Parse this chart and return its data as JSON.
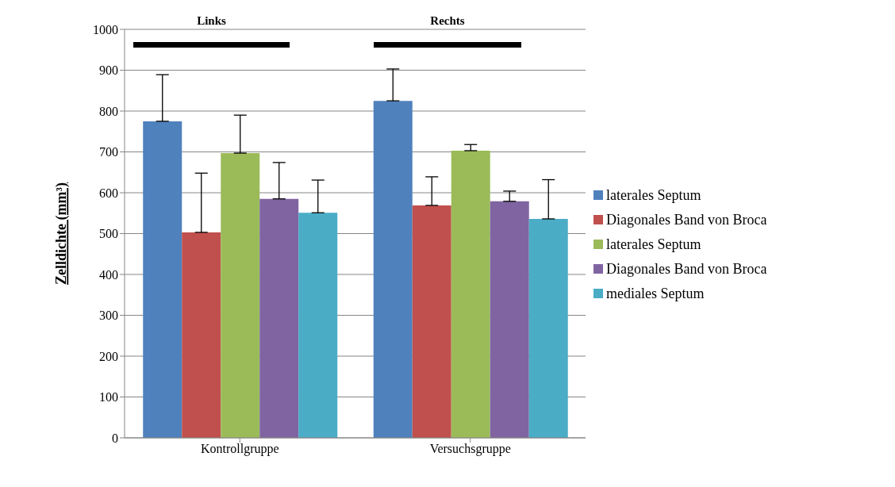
{
  "chart_data": {
    "type": "bar",
    "ylabel": "Zelldichte (mm³)",
    "categories": [
      "Kontrollgruppe",
      "Versuchsgruppe"
    ],
    "series": [
      {
        "name": "laterales Septum",
        "color": "#4f81bd",
        "values": [
          775,
          825
        ],
        "errors": [
          [
            775,
            889
          ],
          [
            825,
            903
          ]
        ]
      },
      {
        "name": "Diagonales Band von Broca",
        "color": "#c0504d",
        "values": [
          503,
          569
        ],
        "errors": [
          [
            503,
            648
          ],
          [
            569,
            639
          ]
        ]
      },
      {
        "name": "laterales Septum",
        "color": "#9bbb59",
        "values": [
          697,
          703
        ],
        "errors": [
          [
            697,
            790
          ],
          [
            703,
            718
          ]
        ]
      },
      {
        "name": "Diagonales Band von Broca",
        "color": "#8064a2",
        "values": [
          585,
          579
        ],
        "errors": [
          [
            585,
            674
          ],
          [
            579,
            604
          ]
        ]
      },
      {
        "name": "mediales Septum",
        "color": "#4bacc6",
        "values": [
          551,
          536
        ],
        "errors": [
          [
            551,
            631
          ],
          [
            536,
            632
          ]
        ]
      }
    ],
    "ylim": [
      0,
      1000
    ],
    "yticks": [
      0,
      100,
      200,
      300,
      400,
      500,
      600,
      700,
      800,
      900,
      1000
    ],
    "grid": "y",
    "legend": "right",
    "annotations": [
      "Links",
      "Rechts"
    ]
  }
}
